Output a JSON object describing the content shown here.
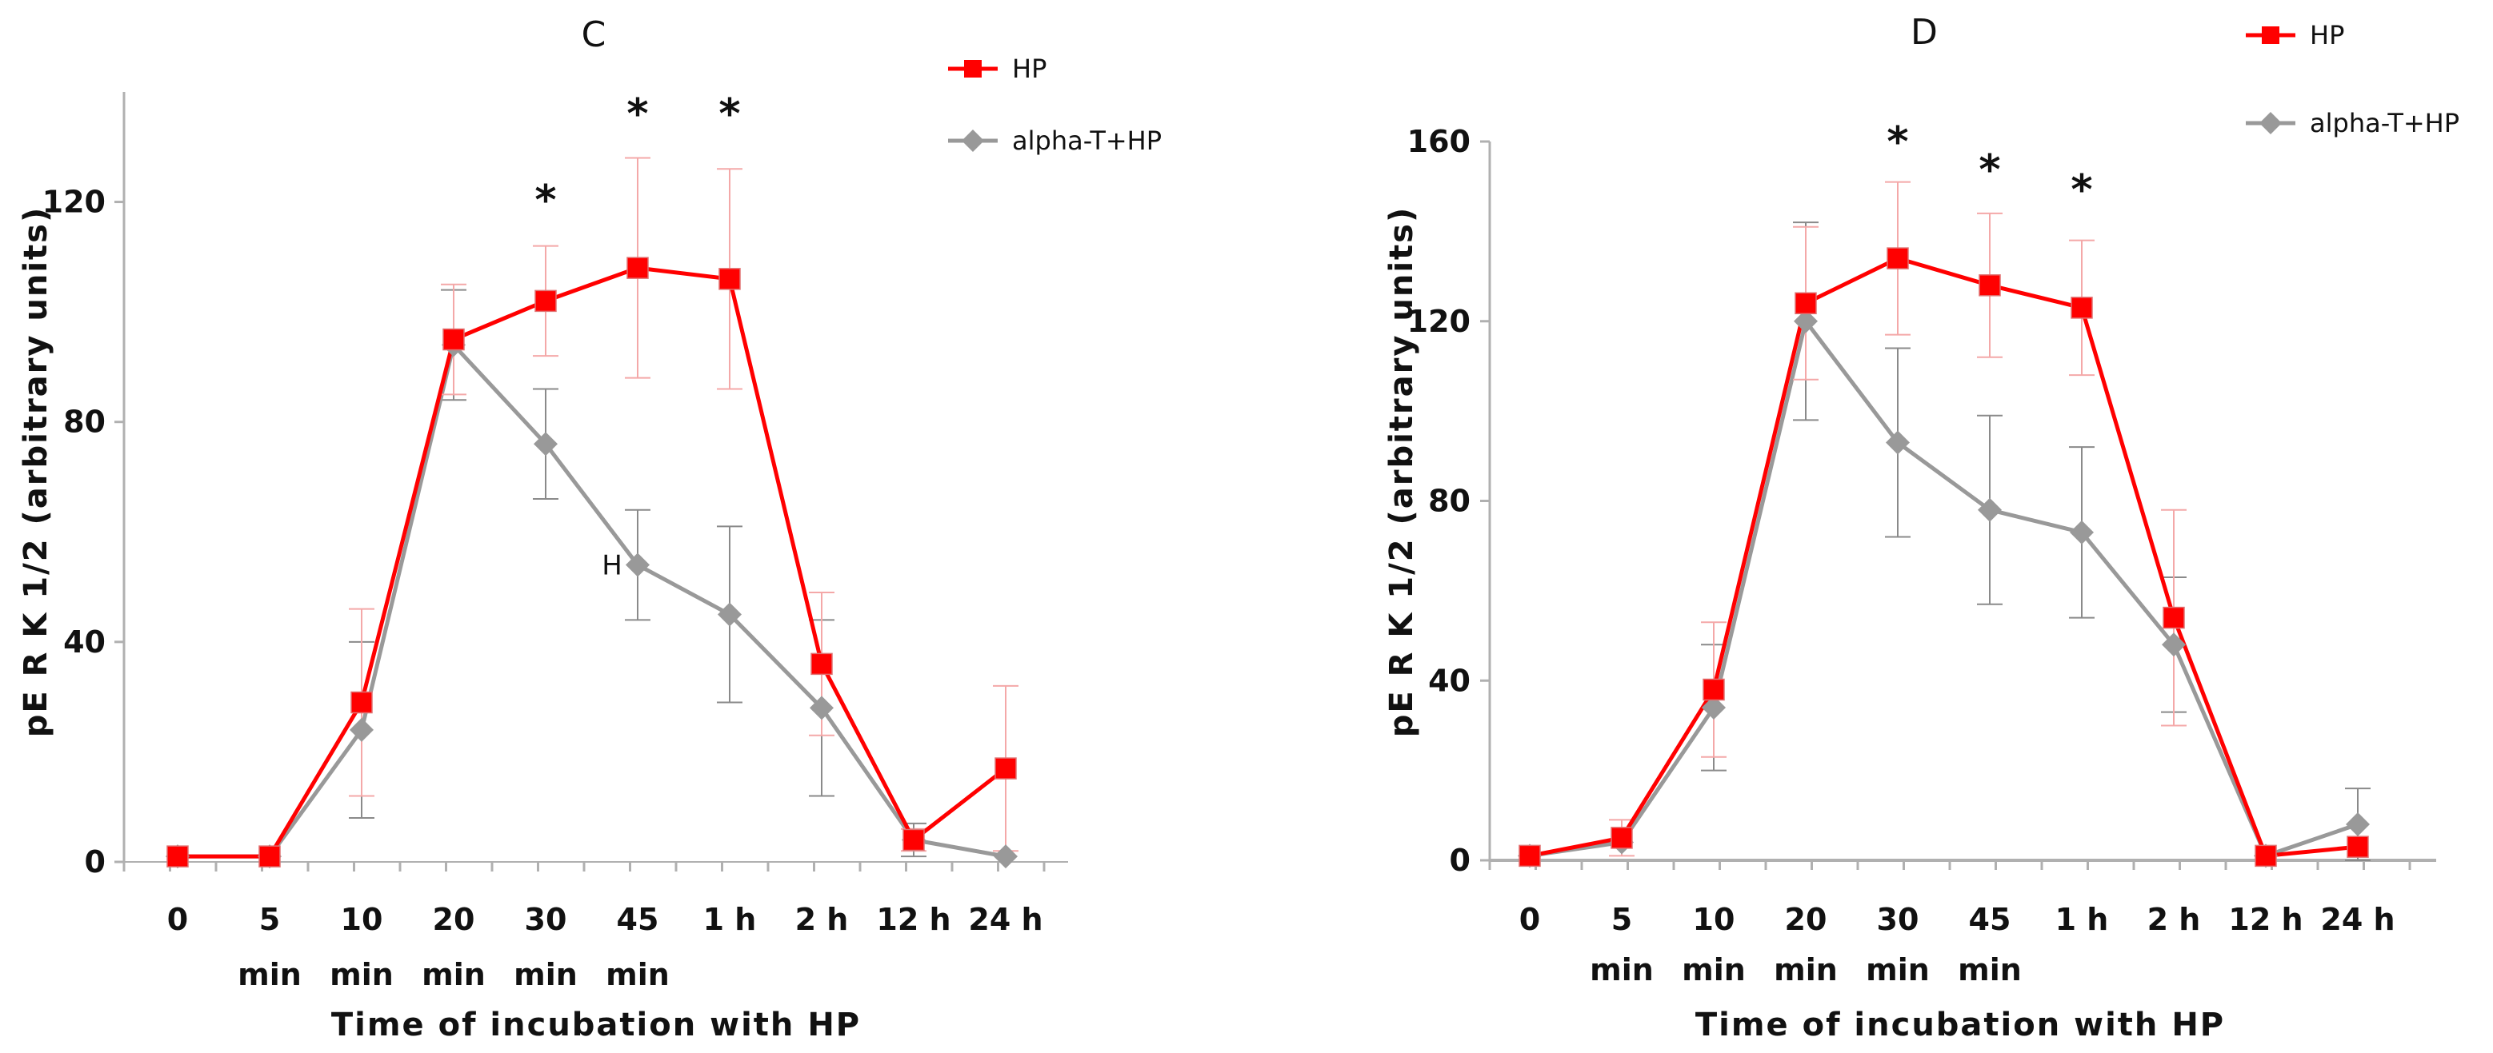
{
  "chart_data": [
    {
      "type": "line",
      "title": "C",
      "xlabel": "Time of incubation with HP",
      "ylabel": "pE R K  1/2  (arbitrary units)",
      "ylim": [
        0,
        140
      ],
      "yticks": [
        0,
        40,
        80,
        120
      ],
      "categories": [
        [
          "0",
          ""
        ],
        [
          "5",
          "min"
        ],
        [
          "10",
          "min"
        ],
        [
          "20",
          "min"
        ],
        [
          "30",
          "min"
        ],
        [
          "45",
          "min"
        ],
        [
          "1 h",
          ""
        ],
        [
          "2 h",
          ""
        ],
        [
          "12 h",
          ""
        ],
        [
          "24 h",
          ""
        ]
      ],
      "series": [
        {
          "name": "HP",
          "color": "#ff0000",
          "errColor": "#f4a8a8",
          "marker": "square",
          "values": [
            1,
            1,
            29,
            95,
            102,
            108,
            106,
            36,
            4,
            17
          ],
          "errors": [
            0,
            0,
            17,
            10,
            10,
            20,
            20,
            13,
            2,
            15
          ]
        },
        {
          "name": "alpha-T+HP",
          "color": "#999999",
          "errColor": "#8a8a8a",
          "marker": "diamond",
          "values": [
            1,
            1,
            24,
            94,
            76,
            54,
            45,
            28,
            4,
            1
          ],
          "errors": [
            0,
            0,
            16,
            10,
            10,
            10,
            16,
            16,
            3,
            0
          ]
        }
      ],
      "significance": [
        {
          "category": "30 min",
          "label": "*"
        },
        {
          "category": "45 min",
          "label": "*"
        },
        {
          "category": "1 h",
          "label": "*"
        }
      ],
      "annotations": [
        {
          "text": "H"
        }
      ],
      "legend_position": "top-right"
    },
    {
      "type": "line",
      "title": "D",
      "xlabel": "Time of incubation with HP",
      "ylabel": "pE R K  1/2  (arbitrary units)",
      "ylim": [
        0,
        160
      ],
      "yticks": [
        0,
        40,
        80,
        120,
        160
      ],
      "categories": [
        [
          "0",
          ""
        ],
        [
          "5",
          "min"
        ],
        [
          "10",
          "min"
        ],
        [
          "20",
          "min"
        ],
        [
          "30",
          "min"
        ],
        [
          "45",
          "min"
        ],
        [
          "1 h",
          ""
        ],
        [
          "2 h",
          ""
        ],
        [
          "12 h",
          ""
        ],
        [
          "24 h",
          ""
        ]
      ],
      "series": [
        {
          "name": "HP",
          "color": "#ff0000",
          "errColor": "#f4a8a8",
          "marker": "square",
          "values": [
            1,
            5,
            38,
            124,
            134,
            128,
            123,
            54,
            1,
            3
          ],
          "errors": [
            0,
            4,
            15,
            17,
            17,
            16,
            15,
            24,
            0,
            0
          ]
        },
        {
          "name": "alpha-T+HP",
          "color": "#999999",
          "errColor": "#8a8a8a",
          "marker": "diamond",
          "values": [
            1,
            4,
            34,
            120,
            93,
            78,
            73,
            48,
            1,
            8
          ],
          "errors": [
            0,
            0,
            14,
            22,
            21,
            21,
            19,
            15,
            0,
            8
          ]
        }
      ],
      "significance": [
        {
          "category": "30 min",
          "label": "*"
        },
        {
          "category": "45 min",
          "label": "*"
        },
        {
          "category": "1 h",
          "label": "*"
        }
      ],
      "annotations": [],
      "legend_position": "top-right"
    }
  ]
}
